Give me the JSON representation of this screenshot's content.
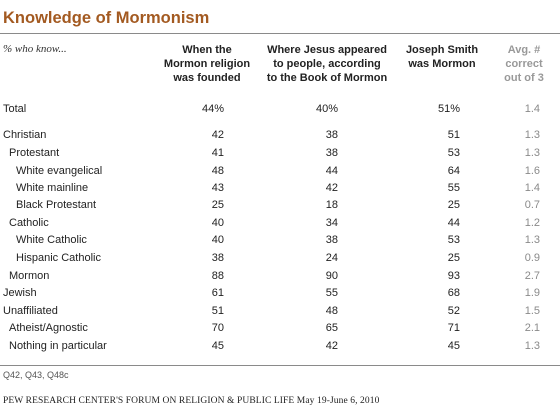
{
  "title": "Knowledge of Mormonism",
  "subtitle": "% who know...",
  "columns": [
    "When the\nMormon religion\nwas founded",
    "Where Jesus appeared\nto people, according\nto the Book of Mormon",
    "Joseph Smith\nwas Mormon",
    "Avg. #\ncorrect\nout of 3"
  ],
  "chart_data": {
    "type": "table",
    "rows": [
      {
        "label": "Total",
        "indent": 0,
        "values": [
          "44%",
          "40%",
          "51%",
          "1.4"
        ]
      },
      {
        "label": "Christian",
        "indent": 0,
        "values": [
          "42",
          "38",
          "51",
          "1.3"
        ]
      },
      {
        "label": "Protestant",
        "indent": 1,
        "values": [
          "41",
          "38",
          "53",
          "1.3"
        ]
      },
      {
        "label": "White evangelical",
        "indent": 2,
        "values": [
          "48",
          "44",
          "64",
          "1.6"
        ]
      },
      {
        "label": "White mainline",
        "indent": 2,
        "values": [
          "43",
          "42",
          "55",
          "1.4"
        ]
      },
      {
        "label": "Black Protestant",
        "indent": 2,
        "values": [
          "25",
          "18",
          "25",
          "0.7"
        ]
      },
      {
        "label": "Catholic",
        "indent": 1,
        "values": [
          "40",
          "34",
          "44",
          "1.2"
        ]
      },
      {
        "label": "White Catholic",
        "indent": 2,
        "values": [
          "40",
          "38",
          "53",
          "1.3"
        ]
      },
      {
        "label": "Hispanic Catholic",
        "indent": 2,
        "values": [
          "38",
          "24",
          "25",
          "0.9"
        ]
      },
      {
        "label": "Mormon",
        "indent": 1,
        "values": [
          "88",
          "90",
          "93",
          "2.7"
        ]
      },
      {
        "label": "Jewish",
        "indent": 0,
        "values": [
          "61",
          "55",
          "68",
          "1.9"
        ]
      },
      {
        "label": "Unaffiliated",
        "indent": 0,
        "values": [
          "51",
          "48",
          "52",
          "1.5"
        ]
      },
      {
        "label": "Atheist/Agnostic",
        "indent": 1,
        "values": [
          "70",
          "65",
          "71",
          "2.1"
        ]
      },
      {
        "label": "Nothing in particular",
        "indent": 1,
        "values": [
          "45",
          "42",
          "45",
          "1.3"
        ]
      }
    ]
  },
  "note": "Q42, Q43, Q48c",
  "source": "PEW RESEARCH CENTER'S FORUM ON RELIGION & PUBLIC LIFE May 19-June 6, 2010",
  "colors": {
    "title": "#a35a21",
    "muted": "#8a8a8a"
  }
}
